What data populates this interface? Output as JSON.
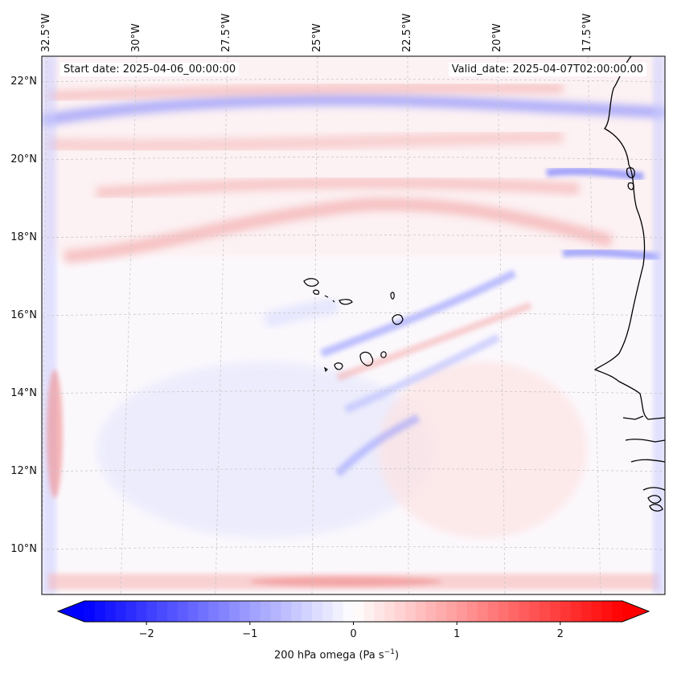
{
  "map": {
    "start_date": "Start date: 2025-04-06_00:00:00",
    "valid_date": "Valid_date: 2025-04-07T02:00:00.00",
    "lon_labels": [
      {
        "label": "32.5°W",
        "lon": -32.5
      },
      {
        "label": "30°W",
        "lon": -30
      },
      {
        "label": "27.5°W",
        "lon": -27.5
      },
      {
        "label": "25°W",
        "lon": -25
      },
      {
        "label": "22.5°W",
        "lon": -22.5
      },
      {
        "label": "20°W",
        "lon": -20
      },
      {
        "label": "17.5°W",
        "lon": -17.5
      }
    ],
    "lat_labels": [
      {
        "label": "22°N",
        "lat": 22
      },
      {
        "label": "20°N",
        "lat": 20
      },
      {
        "label": "18°N",
        "lat": 18
      },
      {
        "label": "16°N",
        "lat": 16
      },
      {
        "label": "14°N",
        "lat": 14
      },
      {
        "label": "12°N",
        "lat": 12
      },
      {
        "label": "10°N",
        "lat": 10
      }
    ],
    "field": "200 hPa omega",
    "region": "Cabo Verde and West African coast"
  },
  "colorbar": {
    "label": "200 hPa omega (Pa s",
    "label_exp": "−1",
    "label_end": ")",
    "min": -2.6,
    "max": 2.6,
    "ticks": [
      {
        "label": "−2",
        "value": -2
      },
      {
        "label": "−1",
        "value": -1
      },
      {
        "label": "0",
        "value": 0
      },
      {
        "label": "1",
        "value": 1
      },
      {
        "label": "2",
        "value": 2
      }
    ],
    "cmap_low": "#0000ff",
    "cmap_mid": "#ffffff",
    "cmap_high": "#ff0000"
  }
}
